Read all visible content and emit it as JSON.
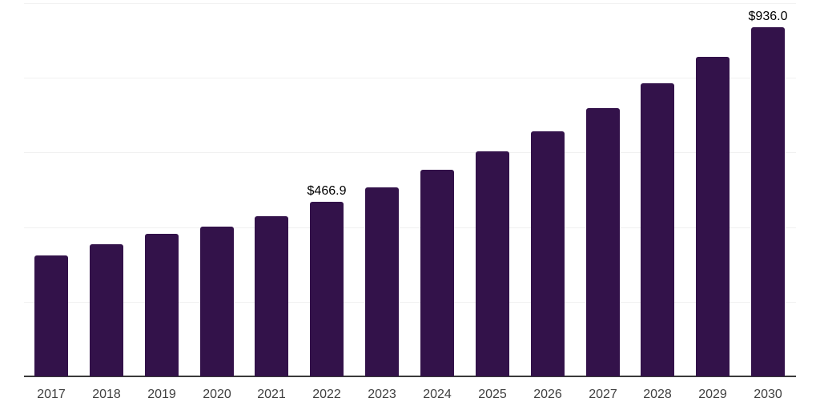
{
  "chart_data": {
    "type": "bar",
    "title": "",
    "xlabel": "",
    "ylabel": "",
    "categories": [
      "2017",
      "2018",
      "2019",
      "2020",
      "2021",
      "2022",
      "2023",
      "2024",
      "2025",
      "2026",
      "2027",
      "2028",
      "2029",
      "2030"
    ],
    "values": [
      324.1,
      354.0,
      382.7,
      400.9,
      428.6,
      466.9,
      507.4,
      554.3,
      603.4,
      656.7,
      718.5,
      784.6,
      857.1,
      936.0
    ],
    "data_labels": [
      "",
      "",
      "",
      "",
      "",
      "$466.9",
      "",
      "",
      "",
      "",
      "",
      "",
      "",
      "$936.0"
    ],
    "ylim": [
      0,
      1000
    ],
    "gridline_values": [
      200,
      400,
      600,
      800,
      1000
    ],
    "grid": true,
    "legend_position": "none",
    "colors": {
      "bar": "#33124a",
      "gridline": "#f1f1f1",
      "axis": "#3a3a3a",
      "tick_label": "#404040",
      "data_label": "#000000",
      "background": "#ffffff"
    }
  }
}
